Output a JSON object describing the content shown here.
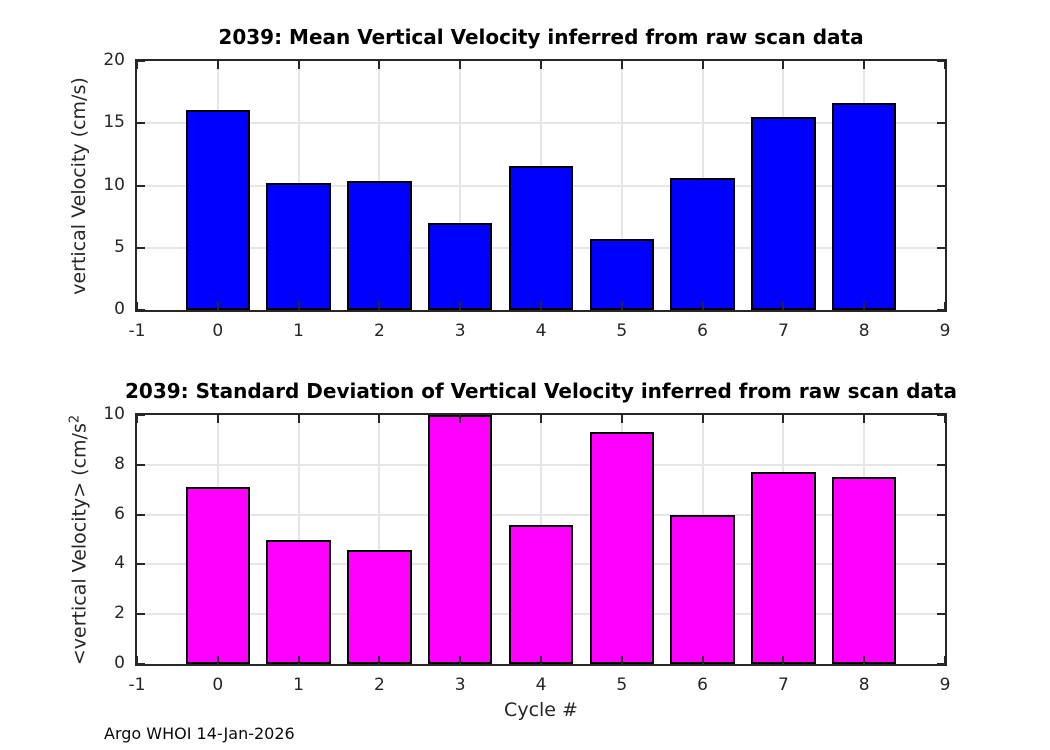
{
  "figure": {
    "xlabel": "Cycle #",
    "footer": "Argo WHOI 14-Jan-2026",
    "background": "#FFFFFF",
    "axis_color": "#262626",
    "grid_color": "#E6E6E6"
  },
  "chart_data": [
    {
      "type": "bar",
      "title": "2039: Mean Vertical Velocity inferred from raw scan data",
      "ylabel": "vertical Velocity (cm/s)",
      "ylabel_superscript": "",
      "xlabel": "",
      "categories": [
        0,
        1,
        2,
        3,
        4,
        5,
        6,
        7,
        8
      ],
      "values": [
        16.1,
        10.2,
        10.4,
        7.0,
        11.6,
        5.7,
        10.6,
        15.5,
        16.6
      ],
      "bar_color": "#0000FF",
      "edge_color": "#000000",
      "bar_width": 0.8,
      "xlim": [
        -1,
        9
      ],
      "ylim": [
        0,
        20
      ],
      "xticks": [
        "-1",
        "0",
        "1",
        "2",
        "3",
        "4",
        "5",
        "6",
        "7",
        "8",
        "9"
      ],
      "yticks": [
        "0",
        "5",
        "10",
        "15",
        "20"
      ],
      "grid": true,
      "legend": null
    },
    {
      "type": "bar",
      "title": "2039: Standard Deviation of Vertical Velocity inferred from raw scan data",
      "ylabel": "<vertical Velocity> (cm/s",
      "ylabel_superscript": "2",
      "xlabel": "Cycle #",
      "categories": [
        0,
        1,
        2,
        3,
        4,
        5,
        6,
        7,
        8
      ],
      "values": [
        7.1,
        5.0,
        4.6,
        10.0,
        5.6,
        9.3,
        6.0,
        7.7,
        7.5
      ],
      "bar_color": "#FF00FF",
      "edge_color": "#000000",
      "bar_width": 0.8,
      "xlim": [
        -1,
        9
      ],
      "ylim": [
        0,
        10
      ],
      "xticks": [
        "-1",
        "0",
        "1",
        "2",
        "3",
        "4",
        "5",
        "6",
        "7",
        "8",
        "9"
      ],
      "yticks": [
        "0",
        "2",
        "4",
        "6",
        "8",
        "10"
      ],
      "grid": true,
      "legend": null
    }
  ]
}
